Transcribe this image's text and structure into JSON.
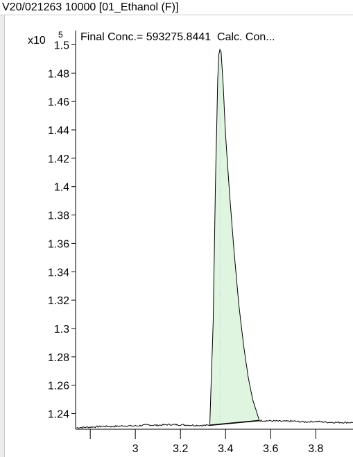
{
  "window": {
    "title": "V20/021263 10000 [01_Ethanol (F)]"
  },
  "chart_data": {
    "type": "line",
    "y_multiplier_label": "x10",
    "y_multiplier_exponent": "5",
    "annotation": "Final Conc.= 593275.8441  Calc. Con...",
    "xlim": [
      2.735,
      3.965
    ],
    "ylim": [
      1.229,
      1.51
    ],
    "x_ticks": [
      2.8,
      3,
      3.2,
      3.4,
      3.6,
      3.8
    ],
    "x_tick_labels": [
      "",
      "3",
      "3.2",
      "3.4",
      "3.6",
      "3.8"
    ],
    "y_ticks": [
      1.24,
      1.26,
      1.28,
      1.3,
      1.32,
      1.34,
      1.36,
      1.38,
      1.4,
      1.42,
      1.44,
      1.46,
      1.48,
      1.5
    ],
    "y_tick_labels": [
      "1.24",
      "1.26",
      "1.28",
      "1.3",
      "1.32",
      "1.34",
      "1.36",
      "1.38",
      "1.4",
      "1.42",
      "1.44",
      "1.46",
      "1.48",
      "1.5"
    ],
    "peak": {
      "apex_x": 3.375,
      "apex_y": 1.4967,
      "start": [
        3.33,
        1.2318
      ],
      "end": [
        3.55,
        1.2351
      ]
    },
    "trace": [
      [
        2.74,
        1.2301
      ],
      [
        2.8,
        1.2305
      ],
      [
        2.85,
        1.231
      ],
      [
        2.9,
        1.2309
      ],
      [
        2.95,
        1.2314
      ],
      [
        3.0,
        1.2313
      ],
      [
        3.05,
        1.232
      ],
      [
        3.1,
        1.2318
      ],
      [
        3.15,
        1.2323
      ],
      [
        3.2,
        1.2321
      ],
      [
        3.25,
        1.2318
      ],
      [
        3.3,
        1.2317
      ],
      [
        3.33,
        1.2318
      ],
      [
        3.345,
        1.305
      ],
      [
        3.355,
        1.4
      ],
      [
        3.365,
        1.475
      ],
      [
        3.37,
        1.493
      ],
      [
        3.375,
        1.4967
      ],
      [
        3.38,
        1.495
      ],
      [
        3.39,
        1.47
      ],
      [
        3.4,
        1.436
      ],
      [
        3.42,
        1.39
      ],
      [
        3.44,
        1.35
      ],
      [
        3.46,
        1.315
      ],
      [
        3.48,
        1.288
      ],
      [
        3.5,
        1.266
      ],
      [
        3.52,
        1.25
      ],
      [
        3.54,
        1.24
      ],
      [
        3.55,
        1.2351
      ],
      [
        3.6,
        1.2349
      ],
      [
        3.65,
        1.2346
      ],
      [
        3.7,
        1.2347
      ],
      [
        3.75,
        1.2341
      ],
      [
        3.8,
        1.2345
      ],
      [
        3.85,
        1.2339
      ],
      [
        3.9,
        1.2338
      ],
      [
        3.965,
        1.2337
      ]
    ],
    "colors": {
      "peak_fill": "#dff5df",
      "peak_line": "#000000",
      "baseline": "#000000",
      "apex_marker": "#b8c8e8"
    },
    "grid": false
  }
}
